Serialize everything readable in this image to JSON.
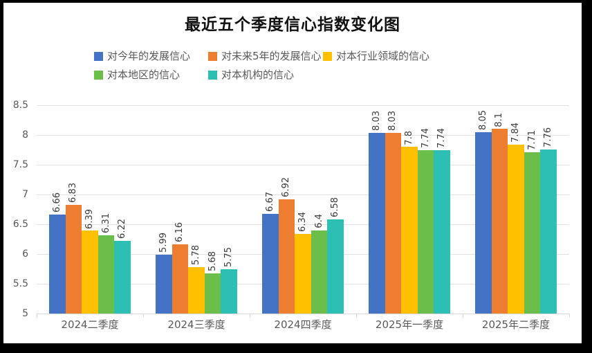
{
  "window": {
    "frame_border_color": "#000000",
    "background_color": "#ffffff"
  },
  "chart_data": {
    "type": "bar",
    "title": "最近五个季度信心指数变化图",
    "categories": [
      "2024二季度",
      "2024三季度",
      "2024四季度",
      "2025年一季度",
      "2025年二季度"
    ],
    "series": [
      {
        "name": "对今年的发展信心",
        "color": "#4472C4",
        "values": [
          6.66,
          5.99,
          6.67,
          8.03,
          8.05
        ]
      },
      {
        "name": "对未来5年的发展信心",
        "color": "#ED7D31",
        "values": [
          6.83,
          6.16,
          6.92,
          8.03,
          8.1
        ]
      },
      {
        "name": "对本行业领域的信心",
        "color": "#FFC000",
        "values": [
          6.39,
          5.78,
          6.34,
          7.8,
          7.84
        ]
      },
      {
        "name": "对本地区的信心",
        "color": "#6CBE4B",
        "values": [
          6.31,
          5.68,
          6.4,
          7.74,
          7.71
        ]
      },
      {
        "name": "对本机构的信心",
        "color": "#2EBFB4",
        "values": [
          6.22,
          5.75,
          6.58,
          7.74,
          7.76
        ]
      }
    ],
    "ylim": [
      5,
      8.5
    ],
    "y_step": 0.5,
    "y_tick_labels": [
      "8.5",
      "8",
      "7.5",
      "7",
      "6.5",
      "6",
      "5.5",
      "5"
    ],
    "grid": true,
    "legend_position": "top",
    "legend_rows": [
      [
        0,
        1,
        2
      ],
      [
        3,
        4
      ]
    ],
    "data_labels": true,
    "data_label_rotation_deg": -90,
    "axis_text_color": "#595959",
    "data_label_color": "#3b3b3b",
    "gridline_color": "#e2e2e2"
  }
}
